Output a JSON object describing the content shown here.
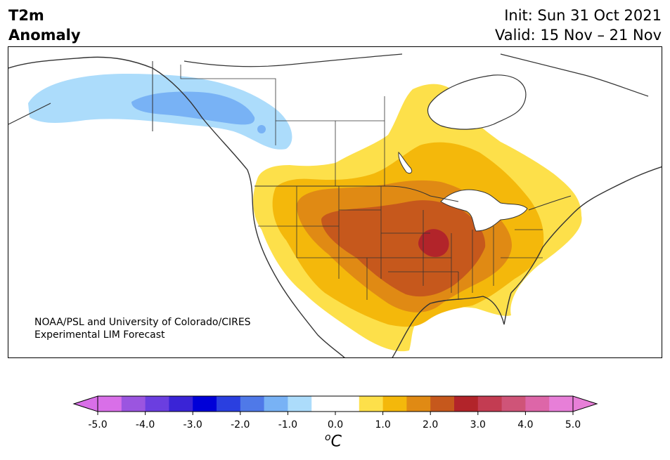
{
  "header": {
    "variable_line1": "T2m",
    "variable_line2": "Anomaly",
    "init": "Init: Sun 31 Oct 2021",
    "valid": "Valid: 15 Nov – 21 Nov"
  },
  "credit": {
    "line1": "NOAA/PSL and University of Colorado/CIRES",
    "line2": "Experimental LIM Forecast"
  },
  "colorbar": {
    "unit_prefix": "o",
    "unit": "C",
    "tick_labels": [
      "-5.0",
      "-4.0",
      "-3.0",
      "-2.0",
      "-1.0",
      "0.0",
      "1.0",
      "2.0",
      "3.0",
      "4.0",
      "5.0"
    ],
    "colors": [
      "#d96fe8",
      "#9b55e0",
      "#6b3ee0",
      "#3a24d6",
      "#0000d8",
      "#2a3fe0",
      "#4f79e8",
      "#78b2f5",
      "#acdcfb",
      "#ffffff",
      "#ffffff",
      "#fde04a",
      "#f4b80b",
      "#e08a14",
      "#c6581c",
      "#b2242a",
      "#c33c52",
      "#cf5478",
      "#dd66a8",
      "#e77fd8"
    ],
    "under_color": "#d96fe8",
    "over_color": "#e77fd8"
  },
  "map": {
    "region": "North America",
    "features": {
      "cold_anomaly": "Alaska / northwest Canada",
      "warm_anomaly": "Central and eastern United States",
      "peak_warm": "Midwest near Missouri"
    },
    "anomaly_colors": {
      "cold_light": "#acdcfb",
      "cold_mid": "#78b2f5",
      "warm_1": "#fde04a",
      "warm_2": "#f4b80b",
      "warm_3": "#e08a14",
      "warm_4": "#c6581c",
      "warm_5": "#b2242a"
    }
  }
}
